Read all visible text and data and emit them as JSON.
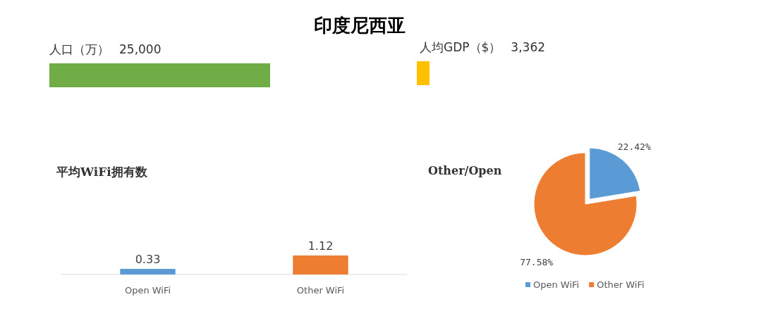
{
  "chart_data": [
    {
      "type": "other",
      "title": "印度尼西亚"
    },
    {
      "type": "other",
      "title": "人口（万）",
      "annotations": [
        "25,000"
      ]
    },
    {
      "type": "other",
      "title": "人均GDP（$）",
      "annotations": [
        "3,362"
      ]
    },
    {
      "type": "bar",
      "title": "平均WiFi拥有数",
      "categories": [
        "Open WiFi",
        "Other WiFi"
      ],
      "values": [
        0.33,
        1.12
      ],
      "colors": [
        "#5b9bd5",
        "#ed7d31"
      ],
      "data_labels": true,
      "tick_labels": "x"
    },
    {
      "type": "pie",
      "title": "Other/Open",
      "categories": [
        "Open WiFi",
        "Other WiFi"
      ],
      "values": [
        22.42,
        77.58
      ],
      "colors": [
        "#5b9bd5",
        "#ed7d31"
      ],
      "value_labels": [
        "22.42%",
        "77.58%"
      ],
      "legend": "bottom"
    }
  ]
}
